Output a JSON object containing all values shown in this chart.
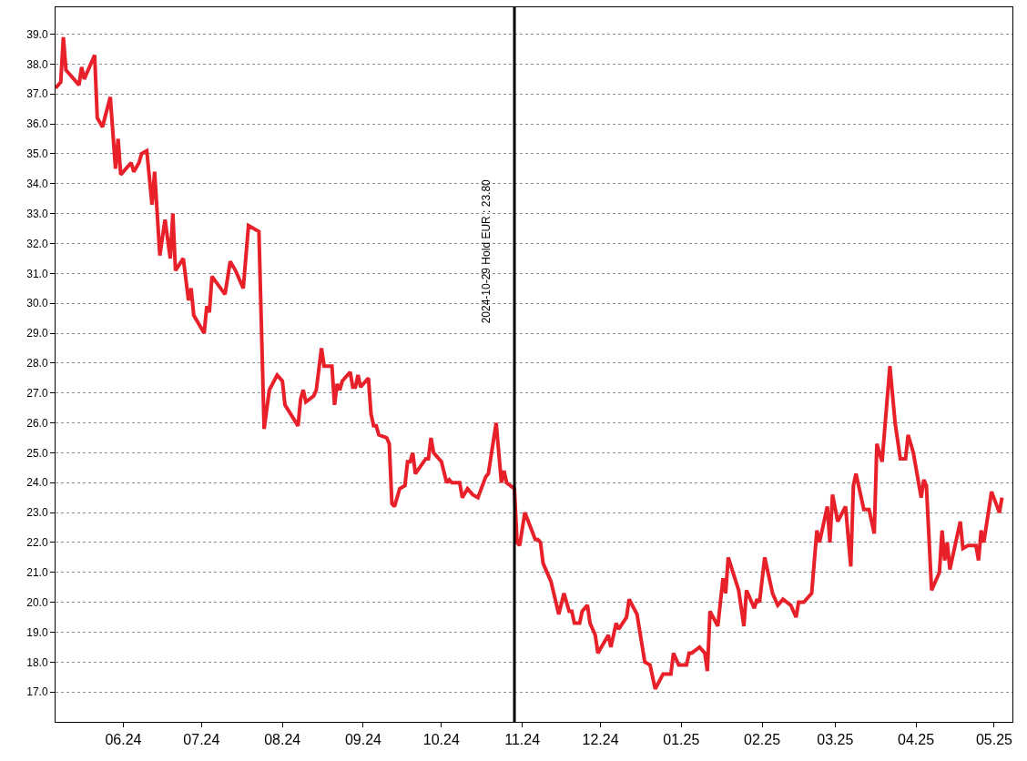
{
  "chart_data": {
    "type": "line",
    "x": [
      "2024-05-06",
      "2024-05-08",
      "2024-05-09",
      "2024-05-10",
      "2024-05-15",
      "2024-05-16",
      "2024-05-17",
      "2024-05-21",
      "2024-05-22",
      "2024-05-24",
      "2024-05-27",
      "2024-05-29",
      "2024-05-30",
      "2024-05-31",
      "2024-06-04",
      "2024-06-05",
      "2024-06-07",
      "2024-06-08",
      "2024-06-10",
      "2024-06-12",
      "2024-06-13",
      "2024-06-15",
      "2024-06-17",
      "2024-06-19",
      "2024-06-20",
      "2024-06-21",
      "2024-06-24",
      "2024-06-26",
      "2024-06-27",
      "2024-06-28",
      "2024-07-02",
      "2024-07-03",
      "2024-07-04",
      "2024-07-05",
      "2024-07-10",
      "2024-07-12",
      "2024-07-14",
      "2024-07-17",
      "2024-07-19",
      "2024-07-23",
      "2024-07-25",
      "2024-07-27",
      "2024-07-30",
      "2024-08-01",
      "2024-08-02",
      "2024-08-07",
      "2024-08-08",
      "2024-08-09",
      "2024-08-10",
      "2024-08-13",
      "2024-08-14",
      "2024-08-16",
      "2024-08-17",
      "2024-08-20",
      "2024-08-21",
      "2024-08-22",
      "2024-08-23",
      "2024-08-24",
      "2024-08-27",
      "2024-08-28",
      "2024-08-29",
      "2024-08-30",
      "2024-08-31",
      "2024-09-03",
      "2024-09-04",
      "2024-09-05",
      "2024-09-06",
      "2024-09-07",
      "2024-09-10",
      "2024-09-11",
      "2024-09-12",
      "2024-09-13",
      "2024-09-15",
      "2024-09-17",
      "2024-09-18",
      "2024-09-19",
      "2024-09-20",
      "2024-09-21",
      "2024-09-25",
      "2024-09-26",
      "2024-09-27",
      "2024-09-28",
      "2024-10-01",
      "2024-10-03",
      "2024-10-04",
      "2024-10-05",
      "2024-10-08",
      "2024-10-09",
      "2024-10-11",
      "2024-10-13",
      "2024-10-15",
      "2024-10-18",
      "2024-10-19",
      "2024-10-22",
      "2024-10-24",
      "2024-10-25",
      "2024-10-26",
      "2024-10-29",
      "2024-10-30",
      "2024-10-31",
      "2024-11-02",
      "2024-11-06",
      "2024-11-07",
      "2024-11-08",
      "2024-11-09",
      "2024-11-12",
      "2024-11-15",
      "2024-11-17",
      "2024-11-19",
      "2024-11-20",
      "2024-11-21",
      "2024-11-23",
      "2024-11-24",
      "2024-11-26",
      "2024-11-27",
      "2024-11-29",
      "2024-11-30",
      "2024-12-04",
      "2024-12-05",
      "2024-12-07",
      "2024-12-08",
      "2024-12-11",
      "2024-12-12",
      "2024-12-15",
      "2024-12-18",
      "2024-12-20",
      "2024-12-22",
      "2024-12-25",
      "2024-12-28",
      "2024-12-29",
      "2024-12-31",
      "2025-01-03",
      "2025-01-04",
      "2025-01-05",
      "2025-01-08",
      "2025-01-10",
      "2025-01-11",
      "2025-01-12",
      "2025-01-15",
      "2025-01-17",
      "2025-01-18",
      "2025-01-19",
      "2025-01-23",
      "2025-01-25",
      "2025-01-26",
      "2025-01-29",
      "2025-01-30",
      "2025-01-31",
      "2025-02-02",
      "2025-02-05",
      "2025-02-07",
      "2025-02-09",
      "2025-02-12",
      "2025-02-14",
      "2025-02-15",
      "2025-02-17",
      "2025-02-20",
      "2025-02-22",
      "2025-02-23",
      "2025-02-26",
      "2025-02-27",
      "2025-02-28",
      "2025-03-02",
      "2025-03-05",
      "2025-03-07",
      "2025-03-08",
      "2025-03-09",
      "2025-03-12",
      "2025-03-14",
      "2025-03-16",
      "2025-03-17",
      "2025-03-19",
      "2025-03-22",
      "2025-03-24",
      "2025-03-26",
      "2025-03-28",
      "2025-03-29",
      "2025-03-31",
      "2025-04-03",
      "2025-04-04",
      "2025-04-05",
      "2025-04-07",
      "2025-04-10",
      "2025-04-11",
      "2025-04-12",
      "2025-04-13",
      "2025-04-14",
      "2025-04-18",
      "2025-04-19",
      "2025-04-21",
      "2025-04-24",
      "2025-04-25",
      "2025-04-26",
      "2025-04-27",
      "2025-04-30",
      "2025-05-03",
      "2025-05-04"
    ],
    "series": [
      {
        "color": "#e8202a",
        "values": [
          37.2,
          37.4,
          38.9,
          37.8,
          37.3,
          37.9,
          37.5,
          38.3,
          36.2,
          35.9,
          36.9,
          34.5,
          35.5,
          34.3,
          34.7,
          34.4,
          34.7,
          35.0,
          35.1,
          33.3,
          34.4,
          31.6,
          32.8,
          31.5,
          33.0,
          31.1,
          31.5,
          30.1,
          30.5,
          29.6,
          29.0,
          29.9,
          29.7,
          30.9,
          30.3,
          31.4,
          31.1,
          30.5,
          32.6,
          32.4,
          25.8,
          27.1,
          27.6,
          27.4,
          26.6,
          25.9,
          26.8,
          27.1,
          26.7,
          26.9,
          27.1,
          28.5,
          27.9,
          27.9,
          26.6,
          27.3,
          27.1,
          27.4,
          27.7,
          27.2,
          27.2,
          27.6,
          27.2,
          27.5,
          26.3,
          25.9,
          25.9,
          25.6,
          25.5,
          25.3,
          23.3,
          23.2,
          23.8,
          23.9,
          24.7,
          24.7,
          25.0,
          24.3,
          24.8,
          24.8,
          25.5,
          25.0,
          24.7,
          24.0,
          24.1,
          24.0,
          24.0,
          23.5,
          23.8,
          23.6,
          23.5,
          24.2,
          24.3,
          26.0,
          24.0,
          24.4,
          24.0,
          23.8,
          22.0,
          21.9,
          23.0,
          22.1,
          22.1,
          22.0,
          21.3,
          20.7,
          19.6,
          20.3,
          19.7,
          19.7,
          19.3,
          19.3,
          19.7,
          19.9,
          19.3,
          18.9,
          18.3,
          18.9,
          18.5,
          19.3,
          19.1,
          19.5,
          20.1,
          19.6,
          18.0,
          17.9,
          17.1,
          17.6,
          17.6,
          18.3,
          17.9,
          17.9,
          18.3,
          18.3,
          18.5,
          18.3,
          17.7,
          19.7,
          19.2,
          20.8,
          20.3,
          21.5,
          20.4,
          19.2,
          20.4,
          19.8,
          20.1,
          20.0,
          21.5,
          20.3,
          19.9,
          20.1,
          19.9,
          19.5,
          20.0,
          20.0,
          20.3,
          22.4,
          22.0,
          23.2,
          22.0,
          23.6,
          22.7,
          23.2,
          21.2,
          23.9,
          24.3,
          23.1,
          23.1,
          22.3,
          25.3,
          24.7,
          27.9,
          26.0,
          24.8,
          24.8,
          25.6,
          25.0,
          23.5,
          24.1,
          23.9,
          20.4,
          21.0,
          22.4,
          21.4,
          22.0,
          21.1,
          22.7,
          21.8,
          21.9,
          21.9,
          21.4,
          22.4,
          22.0,
          23.7,
          23.0,
          23.5
        ]
      }
    ],
    "xlim": [
      "2024-05-06",
      "2025-05-08"
    ],
    "xticks": [
      {
        "value": "2024-06-01",
        "label": "06.24"
      },
      {
        "value": "2024-07-01",
        "label": "07.24"
      },
      {
        "value": "2024-08-01",
        "label": "08.24"
      },
      {
        "value": "2024-09-01",
        "label": "09.24"
      },
      {
        "value": "2024-10-01",
        "label": "10.24"
      },
      {
        "value": "2024-11-01",
        "label": "11.24"
      },
      {
        "value": "2024-12-01",
        "label": "12.24"
      },
      {
        "value": "2025-01-01",
        "label": "01.25"
      },
      {
        "value": "2025-02-01",
        "label": "02.25"
      },
      {
        "value": "2025-03-01",
        "label": "03.25"
      },
      {
        "value": "2025-04-01",
        "label": "04.25"
      },
      {
        "value": "2025-05-01",
        "label": "05.25"
      }
    ],
    "ylim": [
      16.0,
      39.9
    ],
    "yticks": [
      {
        "value": 17,
        "label": "17.0"
      },
      {
        "value": 18,
        "label": "18.0"
      },
      {
        "value": 19,
        "label": "19.0"
      },
      {
        "value": 20,
        "label": "20.0"
      },
      {
        "value": 21,
        "label": "21.0"
      },
      {
        "value": 22,
        "label": "22.0"
      },
      {
        "value": 23,
        "label": "23.0"
      },
      {
        "value": 24,
        "label": "24.0"
      },
      {
        "value": 25,
        "label": "25.0"
      },
      {
        "value": 26,
        "label": "26.0"
      },
      {
        "value": 27,
        "label": "27.0"
      },
      {
        "value": 28,
        "label": "28.0"
      },
      {
        "value": 29,
        "label": "29.0"
      },
      {
        "value": 30,
        "label": "30.0"
      },
      {
        "value": 31,
        "label": "31.0"
      },
      {
        "value": 32,
        "label": "32.0"
      },
      {
        "value": 33,
        "label": "33.0"
      },
      {
        "value": 34,
        "label": "34.0"
      },
      {
        "value": 35,
        "label": "35.0"
      },
      {
        "value": 36,
        "label": "36.0"
      },
      {
        "value": 37,
        "label": "37.0"
      },
      {
        "value": 38,
        "label": "38.0"
      },
      {
        "value": 39,
        "label": "39.0"
      }
    ],
    "ref_lines": [
      {
        "axis": "x",
        "value": "2024-10-29",
        "label": "2024-10-29 Hold EUR : 23.80",
        "color": "#000000",
        "line_style": "solid"
      }
    ],
    "grid": "y",
    "marker": "none",
    "line_style": "solid"
  }
}
